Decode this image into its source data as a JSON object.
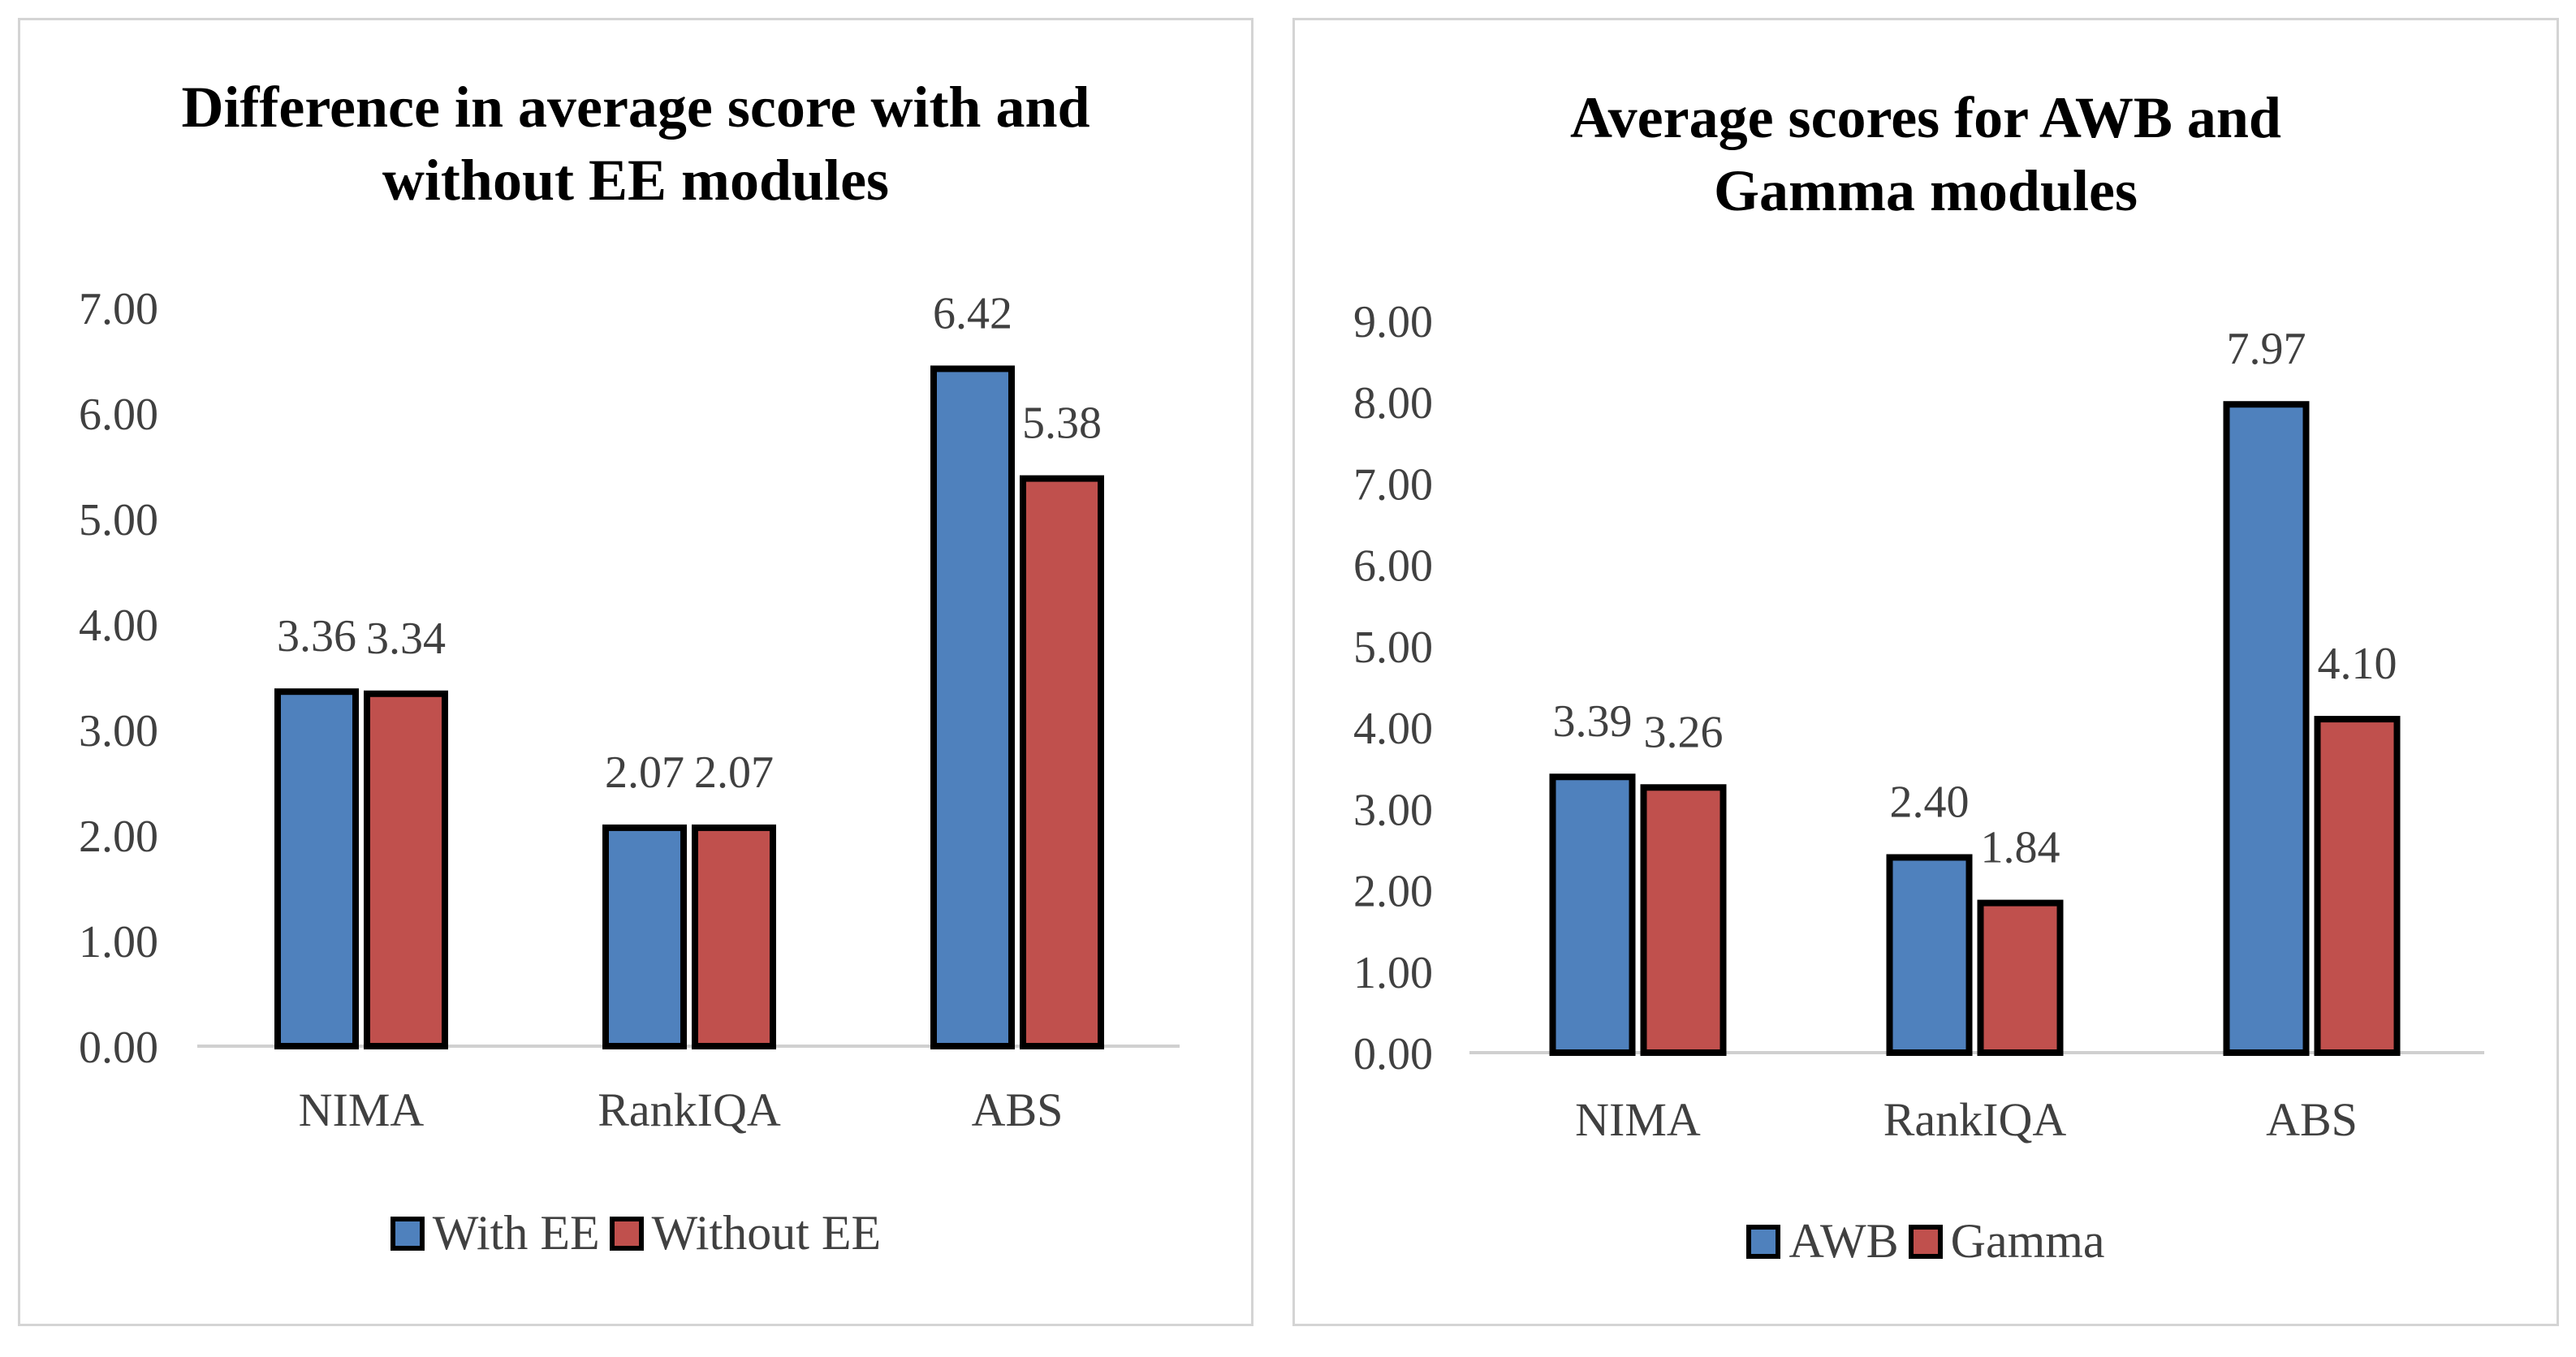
{
  "colors": {
    "blue": "#4f81bd",
    "red": "#c0504d",
    "axis": "#d0d0d0",
    "text": "#404040"
  },
  "chart_data": [
    {
      "type": "bar",
      "title": "Difference in average score with and without EE modules",
      "categories": [
        "NIMA",
        "RankIQA",
        "ABS"
      ],
      "series": [
        {
          "name": "With EE",
          "values": [
            3.36,
            2.07,
            6.42
          ],
          "labels": [
            "3.36",
            "2.07",
            "6.42"
          ]
        },
        {
          "name": "Without EE",
          "values": [
            3.34,
            2.07,
            5.38
          ],
          "labels": [
            "3.34",
            "2.07",
            "5.38"
          ]
        }
      ],
      "ylim": [
        0,
        7
      ],
      "yticks": [
        "0.00",
        "1.00",
        "2.00",
        "3.00",
        "4.00",
        "5.00",
        "6.00",
        "7.00"
      ],
      "xlabel": "",
      "ylabel": "",
      "grid": false,
      "legend": "bottom"
    },
    {
      "type": "bar",
      "title": "Average scores for AWB and Gamma modules",
      "categories": [
        "NIMA",
        "RankIQA",
        "ABS"
      ],
      "series": [
        {
          "name": "AWB",
          "values": [
            3.39,
            2.4,
            7.97
          ],
          "labels": [
            "3.39",
            "2.40",
            "7.97"
          ]
        },
        {
          "name": "Gamma",
          "values": [
            3.26,
            1.84,
            4.1
          ],
          "labels": [
            "3.26",
            "1.84",
            "4.10"
          ]
        }
      ],
      "ylim": [
        0,
        9
      ],
      "yticks": [
        "0.00",
        "1.00",
        "2.00",
        "3.00",
        "4.00",
        "5.00",
        "6.00",
        "7.00",
        "8.00",
        "9.00"
      ],
      "xlabel": "",
      "ylabel": "",
      "grid": false,
      "legend": "bottom"
    }
  ]
}
